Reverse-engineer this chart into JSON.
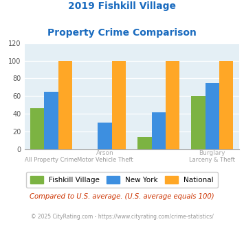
{
  "title_line1": "2019 Fishkill Village",
  "title_line2": "Property Crime Comparison",
  "fishkill": [
    46,
    0,
    14,
    60
  ],
  "newyork": [
    65,
    30,
    42,
    75
  ],
  "national": [
    100,
    100,
    100,
    100
  ],
  "colors": {
    "fishkill": "#7cb342",
    "newyork": "#3d8fe0",
    "national": "#ffa726",
    "background": "#e4eff5",
    "title": "#1a6bbf",
    "xlabel_color": "#999999",
    "xlabel_top_color": "#aaaaaa",
    "annotation": "#cc3300",
    "footnote": "#999999",
    "grid": "#ffffff",
    "spine": "#aaaaaa"
  },
  "ylim": [
    0,
    120
  ],
  "yticks": [
    0,
    20,
    40,
    60,
    80,
    100,
    120
  ],
  "legend_labels": [
    "Fishkill Village",
    "New York",
    "National"
  ],
  "top_xlabels": [
    "",
    "Arson",
    "",
    "Burglary"
  ],
  "bottom_xlabels": [
    "All Property Crime",
    "Motor Vehicle Theft",
    "",
    "Larceny & Theft"
  ],
  "annotation": "Compared to U.S. average. (U.S. average equals 100)",
  "footnote": "© 2025 CityRating.com - https://www.cityrating.com/crime-statistics/",
  "bar_width": 0.26,
  "group_positions": [
    0,
    1,
    2,
    3
  ]
}
